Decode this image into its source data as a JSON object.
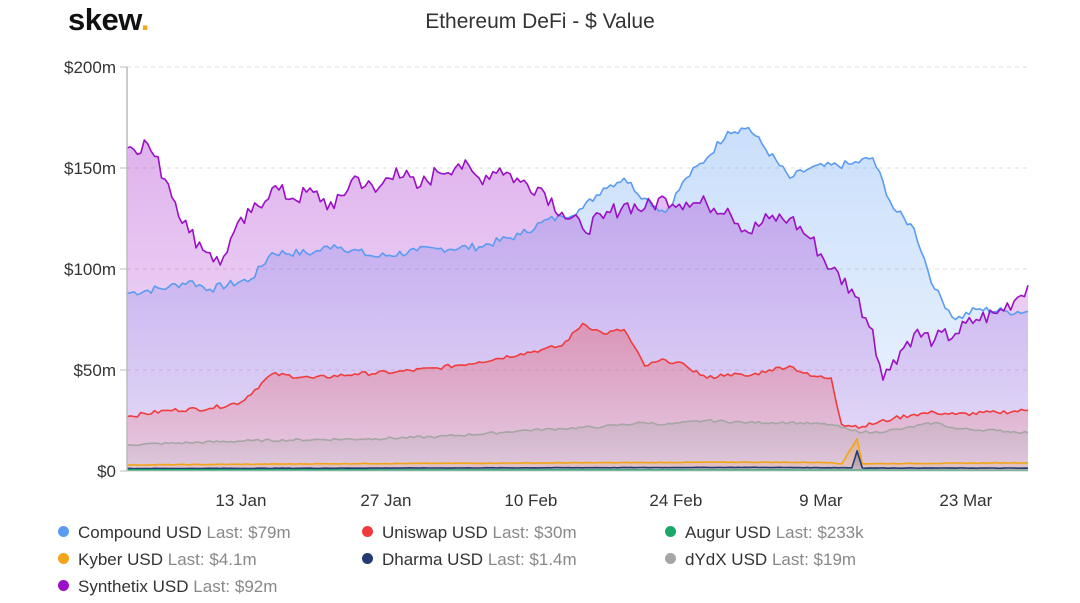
{
  "logo": {
    "text": "skew",
    "dot": "."
  },
  "chart_data": {
    "type": "area",
    "title": "Ethereum DeFi - $ Value",
    "xlabel": "",
    "ylabel": "",
    "ylim": [
      0,
      200
    ],
    "yticks": [
      0,
      50,
      100,
      150,
      200
    ],
    "ytick_labels": [
      "$0",
      "$50m",
      "$100m",
      "$150m",
      "$200m"
    ],
    "x_range": [
      0,
      87
    ],
    "xticks": [
      11,
      25,
      39,
      53,
      67,
      81
    ],
    "xtick_labels": [
      "13 Jan",
      "27 Jan",
      "10 Feb",
      "24 Feb",
      "9 Mar",
      "23 Mar"
    ],
    "x_unit": "days since 2 Jan",
    "grid": true,
    "legend_position": "bottom",
    "series": [
      {
        "name": "Compound USD",
        "last": "$79m",
        "color": "#5b9cf2",
        "points": [
          [
            0,
            88
          ],
          [
            4,
            91
          ],
          [
            6,
            94
          ],
          [
            8,
            90
          ],
          [
            12,
            95
          ],
          [
            14,
            108
          ],
          [
            18,
            108
          ],
          [
            20,
            112
          ],
          [
            24,
            106
          ],
          [
            28,
            109
          ],
          [
            30,
            110
          ],
          [
            34,
            111
          ],
          [
            38,
            117
          ],
          [
            40,
            123
          ],
          [
            42,
            126
          ],
          [
            44,
            130
          ],
          [
            46,
            140
          ],
          [
            48,
            145
          ],
          [
            50,
            135
          ],
          [
            52,
            128
          ],
          [
            54,
            145
          ],
          [
            56,
            155
          ],
          [
            58,
            168
          ],
          [
            60,
            170
          ],
          [
            64,
            145
          ],
          [
            66,
            150
          ],
          [
            70,
            152
          ],
          [
            72,
            155
          ],
          [
            74,
            130
          ],
          [
            76,
            120
          ],
          [
            78,
            90
          ],
          [
            80,
            75
          ],
          [
            82,
            80
          ],
          [
            85,
            79
          ],
          [
            87,
            79
          ]
        ]
      },
      {
        "name": "Uniswap USD",
        "last": "$30m",
        "color": "#f03c3c",
        "points": [
          [
            0,
            27
          ],
          [
            4,
            30
          ],
          [
            8,
            31
          ],
          [
            11,
            34
          ],
          [
            14,
            48
          ],
          [
            18,
            46
          ],
          [
            22,
            48
          ],
          [
            26,
            49
          ],
          [
            30,
            51
          ],
          [
            34,
            54
          ],
          [
            38,
            58
          ],
          [
            40,
            60
          ],
          [
            42,
            62
          ],
          [
            44,
            73
          ],
          [
            46,
            68
          ],
          [
            48,
            70
          ],
          [
            50,
            52
          ],
          [
            52,
            55
          ],
          [
            54,
            52
          ],
          [
            56,
            46
          ],
          [
            58,
            48
          ],
          [
            60,
            47
          ],
          [
            62,
            50
          ],
          [
            64,
            52
          ],
          [
            66,
            47
          ],
          [
            68,
            46
          ],
          [
            69,
            23
          ],
          [
            71,
            22
          ],
          [
            74,
            26
          ],
          [
            76,
            28
          ],
          [
            78,
            29
          ],
          [
            80,
            28
          ],
          [
            84,
            29
          ],
          [
            87,
            30
          ]
        ]
      },
      {
        "name": "Augur USD",
        "last": "$233k",
        "color": "#1aa86a",
        "points": [
          [
            0,
            0.6
          ],
          [
            30,
            0.5
          ],
          [
            60,
            0.4
          ],
          [
            87,
            0.23
          ]
        ]
      },
      {
        "name": "Kyber USD",
        "last": "$4.1m",
        "color": "#f2a516",
        "points": [
          [
            0,
            3
          ],
          [
            20,
            3.6
          ],
          [
            40,
            4.0
          ],
          [
            60,
            4.4
          ],
          [
            68,
            4.2
          ],
          [
            69,
            3.5
          ],
          [
            70.5,
            16
          ],
          [
            71,
            3.6
          ],
          [
            75,
            3.7
          ],
          [
            87,
            4.1
          ]
        ]
      },
      {
        "name": "Dharma USD",
        "last": "$1.4m",
        "color": "#243a73",
        "points": [
          [
            0,
            1.2
          ],
          [
            30,
            1.5
          ],
          [
            60,
            1.8
          ],
          [
            70,
            1.6
          ],
          [
            70.5,
            10
          ],
          [
            71,
            1.5
          ],
          [
            87,
            1.4
          ]
        ]
      },
      {
        "name": "dYdX USD",
        "last": "$19m",
        "color": "#a6a6a6",
        "points": [
          [
            0,
            13
          ],
          [
            6,
            14
          ],
          [
            12,
            15
          ],
          [
            18,
            15.5
          ],
          [
            24,
            16
          ],
          [
            30,
            17
          ],
          [
            36,
            19
          ],
          [
            38,
            20
          ],
          [
            42,
            21
          ],
          [
            46,
            22
          ],
          [
            50,
            24
          ],
          [
            52,
            23
          ],
          [
            56,
            25
          ],
          [
            60,
            24
          ],
          [
            64,
            24
          ],
          [
            68,
            23
          ],
          [
            70,
            20
          ],
          [
            72,
            19
          ],
          [
            75,
            21
          ],
          [
            78,
            24
          ],
          [
            80,
            21
          ],
          [
            84,
            20
          ],
          [
            87,
            19
          ]
        ]
      },
      {
        "name": "Synthetix USD",
        "last": "$92m",
        "color": "#9b0fc7",
        "points": [
          [
            0,
            160
          ],
          [
            2,
            162
          ],
          [
            4,
            142
          ],
          [
            6,
            118
          ],
          [
            8,
            108
          ],
          [
            9,
            102
          ],
          [
            10,
            115
          ],
          [
            12,
            128
          ],
          [
            14,
            140
          ],
          [
            16,
            135
          ],
          [
            18,
            138
          ],
          [
            20,
            130
          ],
          [
            22,
            146
          ],
          [
            24,
            138
          ],
          [
            26,
            150
          ],
          [
            28,
            140
          ],
          [
            30,
            148
          ],
          [
            32,
            152
          ],
          [
            34,
            145
          ],
          [
            36,
            150
          ],
          [
            38,
            143
          ],
          [
            40,
            140
          ],
          [
            42,
            128
          ],
          [
            44,
            120
          ],
          [
            46,
            125
          ],
          [
            48,
            132
          ],
          [
            50,
            130
          ],
          [
            52,
            135
          ],
          [
            54,
            133
          ],
          [
            56,
            132
          ],
          [
            58,
            130
          ],
          [
            60,
            118
          ],
          [
            62,
            125
          ],
          [
            64,
            125
          ],
          [
            66,
            115
          ],
          [
            68,
            100
          ],
          [
            70,
            90
          ],
          [
            72,
            70
          ],
          [
            73,
            45
          ],
          [
            74,
            55
          ],
          [
            76,
            68
          ],
          [
            78,
            65
          ],
          [
            80,
            68
          ],
          [
            82,
            75
          ],
          [
            84,
            78
          ],
          [
            86,
            86
          ],
          [
            87,
            92
          ]
        ]
      }
    ]
  }
}
